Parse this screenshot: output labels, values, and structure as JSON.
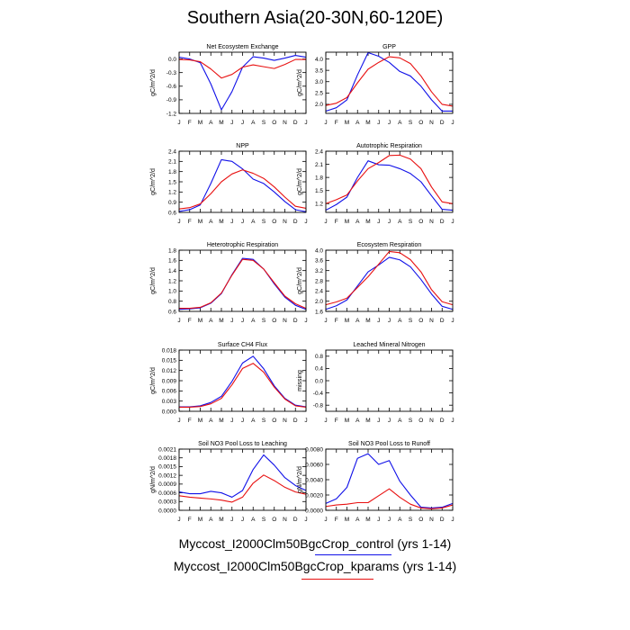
{
  "figure": {
    "title": "Southern Asia(20-30N,60-120E)",
    "series_colors": [
      "#1010e8",
      "#e81010"
    ],
    "legend": [
      {
        "label": "Myccost_I2000Clm50BgcCrop_control (yrs 1-14)",
        "color": "#1010e8"
      },
      {
        "label": "Myccost_I2000Clm50BgcCrop_kparams (yrs 1-14)",
        "color": "#e81010"
      }
    ]
  },
  "chart_data": [
    {
      "type": "line",
      "title": "Net Ecosystem Exchange",
      "ylabel": "gC/m^2/d",
      "x": [
        "J",
        "F",
        "M",
        "A",
        "M",
        "J",
        "J",
        "A",
        "S",
        "O",
        "N",
        "D",
        "J"
      ],
      "ylim": [
        -1.2,
        0.15
      ],
      "yticks": [
        -1.2,
        -0.9,
        -0.6,
        -0.3,
        0.0
      ],
      "ytick_labels": [
        "-1.2",
        "-0.9",
        "-0.6",
        "-0.3",
        "0.0"
      ],
      "series": [
        {
          "values": [
            0.04,
            0.0,
            -0.08,
            -0.55,
            -1.12,
            -0.72,
            -0.18,
            0.05,
            0.02,
            -0.03,
            0.02,
            0.08,
            0.04
          ]
        },
        {
          "values": [
            -0.01,
            -0.02,
            -0.06,
            -0.22,
            -0.42,
            -0.34,
            -0.18,
            -0.13,
            -0.17,
            -0.21,
            -0.12,
            -0.01,
            -0.01
          ]
        }
      ]
    },
    {
      "type": "line",
      "title": "GPP",
      "ylabel": "gC/m^2/d",
      "x": [
        "J",
        "F",
        "M",
        "A",
        "M",
        "J",
        "J",
        "A",
        "S",
        "O",
        "N",
        "D",
        "J"
      ],
      "ylim": [
        1.6,
        4.3
      ],
      "yticks": [
        2.0,
        2.5,
        3.0,
        3.5,
        4.0
      ],
      "ytick_labels": [
        "2.0",
        "2.5",
        "3.0",
        "3.5",
        "4.0"
      ],
      "series": [
        {
          "values": [
            1.7,
            1.85,
            2.2,
            3.3,
            4.28,
            4.12,
            3.85,
            3.45,
            3.25,
            2.8,
            2.2,
            1.7,
            1.7
          ]
        },
        {
          "values": [
            1.95,
            2.05,
            2.3,
            2.95,
            3.55,
            3.85,
            4.1,
            4.05,
            3.8,
            3.25,
            2.55,
            2.0,
            1.92
          ]
        }
      ]
    },
    {
      "type": "line",
      "title": "NPP",
      "ylabel": "gC/m^2/d",
      "x": [
        "J",
        "F",
        "M",
        "A",
        "M",
        "J",
        "J",
        "A",
        "S",
        "O",
        "N",
        "D",
        "J"
      ],
      "ylim": [
        0.6,
        2.4
      ],
      "yticks": [
        0.6,
        0.9,
        1.2,
        1.5,
        1.8,
        2.1,
        2.4
      ],
      "ytick_labels": [
        "0.6",
        "0.9",
        "1.2",
        "1.5",
        "1.8",
        "2.1",
        "2.4"
      ],
      "series": [
        {
          "values": [
            0.63,
            0.68,
            0.82,
            1.45,
            2.15,
            2.1,
            1.88,
            1.58,
            1.45,
            1.2,
            0.92,
            0.68,
            0.62
          ]
        },
        {
          "values": [
            0.7,
            0.74,
            0.85,
            1.15,
            1.5,
            1.73,
            1.85,
            1.75,
            1.6,
            1.35,
            1.05,
            0.78,
            0.72
          ]
        }
      ]
    },
    {
      "type": "line",
      "title": "Autotrophic Respiration",
      "ylabel": "gC/m^2/d",
      "x": [
        "J",
        "F",
        "M",
        "A",
        "M",
        "J",
        "J",
        "A",
        "S",
        "O",
        "N",
        "D",
        "J"
      ],
      "ylim": [
        1.0,
        2.4
      ],
      "yticks": [
        1.2,
        1.5,
        1.8,
        2.1,
        2.4
      ],
      "ytick_labels": [
        "1.2",
        "1.5",
        "1.8",
        "2.1",
        "2.4"
      ],
      "series": [
        {
          "values": [
            1.05,
            1.18,
            1.35,
            1.8,
            2.18,
            2.09,
            2.08,
            2.0,
            1.89,
            1.7,
            1.38,
            1.07,
            1.05
          ]
        },
        {
          "values": [
            1.2,
            1.29,
            1.4,
            1.72,
            2.0,
            2.14,
            2.3,
            2.31,
            2.22,
            2.0,
            1.58,
            1.24,
            1.2
          ]
        }
      ]
    },
    {
      "type": "line",
      "title": "Heterotrophic Respiration",
      "ylabel": "gC/m^2/d",
      "x": [
        "J",
        "F",
        "M",
        "A",
        "M",
        "J",
        "J",
        "A",
        "S",
        "O",
        "N",
        "D",
        "J"
      ],
      "ylim": [
        0.6,
        1.8
      ],
      "yticks": [
        0.6,
        0.8,
        1.0,
        1.2,
        1.4,
        1.6,
        1.8
      ],
      "ytick_labels": [
        "0.6",
        "0.8",
        "1.0",
        "1.2",
        "1.4",
        "1.6",
        "1.8"
      ],
      "series": [
        {
          "values": [
            0.64,
            0.65,
            0.67,
            0.76,
            0.95,
            1.32,
            1.64,
            1.62,
            1.43,
            1.14,
            0.88,
            0.72,
            0.64
          ]
        },
        {
          "values": [
            0.66,
            0.66,
            0.68,
            0.77,
            0.96,
            1.31,
            1.62,
            1.6,
            1.43,
            1.16,
            0.9,
            0.75,
            0.66
          ]
        }
      ]
    },
    {
      "type": "line",
      "title": "Ecosystem Respiration",
      "ylabel": "gC/m^2/d",
      "x": [
        "J",
        "F",
        "M",
        "A",
        "M",
        "J",
        "J",
        "A",
        "S",
        "O",
        "N",
        "D",
        "J"
      ],
      "ylim": [
        1.6,
        4.0
      ],
      "yticks": [
        1.6,
        2.0,
        2.4,
        2.8,
        3.2,
        3.6,
        4.0
      ],
      "ytick_labels": [
        "1.6",
        "2.0",
        "2.4",
        "2.8",
        "3.2",
        "3.6",
        "4.0"
      ],
      "series": [
        {
          "values": [
            1.68,
            1.82,
            2.05,
            2.6,
            3.15,
            3.42,
            3.72,
            3.62,
            3.35,
            2.85,
            2.28,
            1.8,
            1.68
          ]
        },
        {
          "values": [
            1.86,
            1.97,
            2.12,
            2.54,
            2.96,
            3.45,
            3.95,
            3.9,
            3.63,
            3.15,
            2.45,
            1.98,
            1.86
          ]
        }
      ]
    },
    {
      "type": "line",
      "title": "Surface CH4 Flux",
      "ylabel": "gC/m^2/d",
      "x": [
        "J",
        "F",
        "M",
        "A",
        "M",
        "J",
        "J",
        "A",
        "S",
        "O",
        "N",
        "D",
        "J"
      ],
      "ylim": [
        0.0,
        0.018
      ],
      "yticks": [
        0.0,
        0.003,
        0.006,
        0.009,
        0.012,
        0.015,
        0.018
      ],
      "ytick_labels": [
        "0.000",
        "0.003",
        "0.006",
        "0.009",
        "0.012",
        "0.015",
        "0.018"
      ],
      "series": [
        {
          "values": [
            0.0013,
            0.0013,
            0.0016,
            0.0026,
            0.0044,
            0.0088,
            0.0142,
            0.0162,
            0.0125,
            0.0075,
            0.0038,
            0.0018,
            0.0013
          ]
        },
        {
          "values": [
            0.0012,
            0.0012,
            0.0014,
            0.0022,
            0.0038,
            0.0078,
            0.0126,
            0.0141,
            0.0115,
            0.0071,
            0.0036,
            0.0016,
            0.0012
          ]
        }
      ]
    },
    {
      "type": "line",
      "title": "Leached Mineral Nitrogen",
      "ylabel": "missing",
      "x": [
        "J",
        "F",
        "M",
        "A",
        "M",
        "J",
        "J",
        "A",
        "S",
        "O",
        "N",
        "D",
        "J"
      ],
      "ylim": [
        -1.0,
        1.0
      ],
      "yticks": [
        -0.8,
        -0.4,
        0.0,
        0.4,
        0.8
      ],
      "ytick_labels": [
        "-0.8",
        "-0.4",
        "0.0",
        "0.4",
        "0.8"
      ],
      "series": []
    },
    {
      "type": "line",
      "title": "Soil NO3 Pool Loss to Leaching",
      "ylabel": "gN/m^2/d",
      "x": [
        "J",
        "F",
        "M",
        "A",
        "M",
        "J",
        "J",
        "A",
        "S",
        "O",
        "N",
        "D",
        "J"
      ],
      "ylim": [
        0.0,
        0.0021
      ],
      "yticks": [
        0.0,
        0.0003,
        0.0006,
        0.0009,
        0.0012,
        0.0015,
        0.0018,
        0.0021
      ],
      "ytick_labels": [
        "0.0000",
        "0.0003",
        "0.0006",
        "0.0009",
        "0.0012",
        "0.0015",
        "0.0018",
        "0.0021"
      ],
      "series": [
        {
          "values": [
            0.00063,
            0.00057,
            0.00057,
            0.00065,
            0.0006,
            0.00045,
            0.00068,
            0.0014,
            0.0019,
            0.00155,
            0.00112,
            0.00085,
            0.00068
          ]
        },
        {
          "values": [
            0.0005,
            0.00045,
            0.00042,
            0.00039,
            0.00035,
            0.00028,
            0.00045,
            0.00093,
            0.00121,
            0.00102,
            0.00079,
            0.00063,
            0.00055
          ]
        }
      ]
    },
    {
      "type": "line",
      "title": "Soil NO3 Pool Loss to Runoff",
      "ylabel": "gN/m^2/d",
      "x": [
        "J",
        "F",
        "M",
        "A",
        "M",
        "J",
        "J",
        "A",
        "S",
        "O",
        "N",
        "D",
        "J"
      ],
      "ylim": [
        0.0,
        0.008
      ],
      "yticks": [
        0.0,
        0.002,
        0.004,
        0.006,
        0.008
      ],
      "ytick_labels": [
        "0.0000",
        "0.0020",
        "0.0040",
        "0.0060",
        "0.0080"
      ],
      "series": [
        {
          "values": [
            0.0009,
            0.0015,
            0.003,
            0.0068,
            0.0074,
            0.006,
            0.0065,
            0.0038,
            0.002,
            0.0004,
            0.0003,
            0.0004,
            0.0009
          ]
        },
        {
          "values": [
            0.0005,
            0.0007,
            0.0008,
            0.001,
            0.001,
            0.0019,
            0.0028,
            0.0017,
            0.0008,
            0.0003,
            0.0002,
            0.0003,
            0.0007
          ]
        }
      ]
    }
  ]
}
